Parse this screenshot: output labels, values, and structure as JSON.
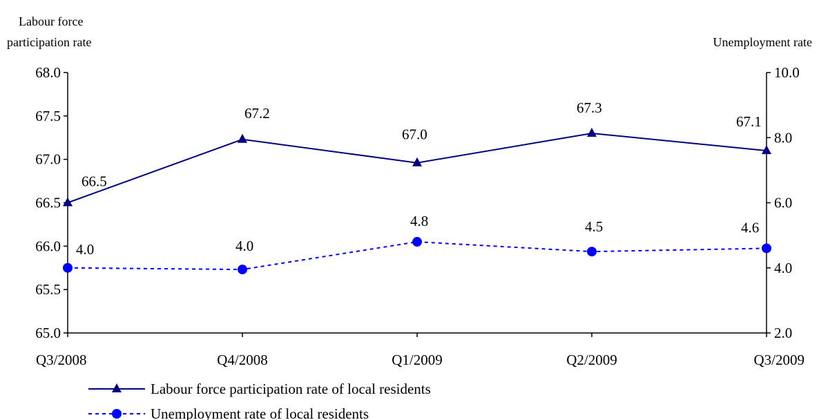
{
  "chart_data": {
    "type": "line",
    "categories": [
      "Q3/2008",
      "Q4/2008",
      "Q1/2009",
      "Q2/2009",
      "Q3/2009"
    ],
    "left_axis": {
      "label_line1": "Labour force",
      "label_line2": "participation rate",
      "ylim": [
        65.0,
        68.0
      ],
      "ticks": [
        "65.0",
        "65.5",
        "66.0",
        "66.5",
        "67.0",
        "67.5",
        "68.0"
      ]
    },
    "right_axis": {
      "label": "Unemployment rate",
      "ylim": [
        2.0,
        10.0
      ],
      "ticks": [
        "2.0",
        "4.0",
        "6.0",
        "8.0",
        "10.0"
      ]
    },
    "series": [
      {
        "name": "Labour force participation rate of local residents",
        "axis": "left",
        "values": [
          66.5,
          67.23,
          66.96,
          67.3,
          67.1
        ],
        "labels": [
          "66.5",
          "67.2",
          "67.0",
          "67.3",
          "67.1"
        ],
        "color": "#000080",
        "line_style": "solid",
        "marker": "triangle"
      },
      {
        "name": "Unemployment rate of local residents",
        "axis": "right",
        "values": [
          4.0,
          3.95,
          4.8,
          4.5,
          4.6
        ],
        "labels": [
          "4.0",
          "4.0",
          "4.8",
          "4.5",
          "4.6"
        ],
        "color": "#0000FF",
        "line_style": "dashed",
        "marker": "circle"
      }
    ],
    "grid": false,
    "legend_position": "bottom-left"
  }
}
